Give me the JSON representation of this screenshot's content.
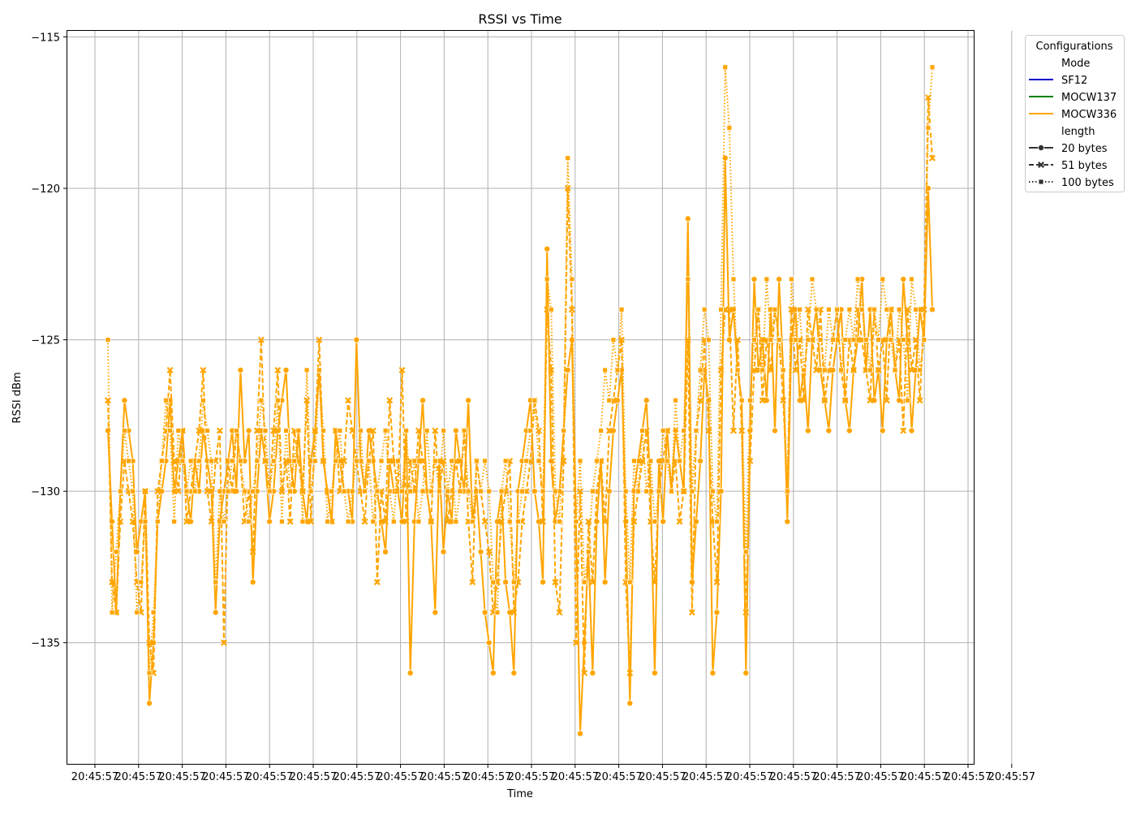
{
  "colors": {
    "SF12": "#0000cc",
    "MOCW137": "#008000",
    "MOCW336": "#ffa500",
    "grid": "#b0b0b0",
    "axis": "#000000"
  },
  "legend": {
    "title": "Configurations",
    "hue_title": "Mode",
    "modes": [
      "SF12",
      "MOCW137",
      "MOCW336"
    ],
    "style_title": "length",
    "lengths": [
      "20 bytes",
      "51 bytes",
      "100 bytes"
    ],
    "placement": "outside-right-top"
  },
  "chart_data": {
    "type": "line",
    "title": "RSSI vs Time",
    "xlabel": "Time",
    "ylabel": "RSSI dBm",
    "ylim": [
      -139,
      -114.8
    ],
    "yticks": [
      -115,
      -120,
      -125,
      -130,
      -135
    ],
    "xtick_labels": [
      "20:45:57",
      "20:45:57",
      "20:45:57",
      "20:45:57",
      "20:45:57",
      "20:45:57",
      "20:45:57",
      "20:45:57",
      "20:45:57",
      "20:45:57",
      "20:45:57",
      "20:45:57",
      "20:45:57",
      "20:45:57",
      "20:45:57",
      "20:45:57",
      "20:45:57",
      "20:45:57",
      "20:45:57",
      "20:45:57",
      "20:45:57",
      "20:45:57"
    ],
    "grid": true,
    "x_note": "x is sample index (0-199); all tick labels print the same time",
    "series": [
      {
        "name": "MOCW336",
        "length": "20 bytes",
        "marker": "circle",
        "dash": "solid",
        "values": [
          -128,
          -131,
          -134,
          -130,
          -127,
          -128,
          -129,
          -132,
          -131,
          -130,
          -137,
          -135,
          -131,
          -130,
          -129,
          -127,
          -130,
          -129,
          -128,
          -130,
          -131,
          -129,
          -130,
          -128,
          -129,
          -130,
          -134,
          -131,
          -130,
          -129,
          -128,
          -130,
          -126,
          -129,
          -128,
          -133,
          -130,
          -128,
          -129,
          -131,
          -130,
          -128,
          -127,
          -126,
          -129,
          -130,
          -128,
          -130,
          -131,
          -129,
          -128,
          -126,
          -129,
          -130,
          -131,
          -128,
          -129,
          -130,
          -130,
          -131,
          -125,
          -129,
          -130,
          -128,
          -129,
          -130,
          -131,
          -132,
          -129,
          -130,
          -130,
          -131,
          -128,
          -136,
          -131,
          -129,
          -127,
          -130,
          -131,
          -134,
          -129,
          -132,
          -130,
          -131,
          -128,
          -129,
          -130,
          -127,
          -131,
          -130,
          -132,
          -134,
          -135,
          -136,
          -131,
          -130,
          -133,
          -134,
          -136,
          -130,
          -129,
          -128,
          -127,
          -130,
          -131,
          -133,
          -122,
          -129,
          -131,
          -130,
          -128,
          -126,
          -125,
          -131,
          -138,
          -135,
          -132,
          -136,
          -131,
          -129,
          -133,
          -130,
          -128,
          -127,
          -126,
          -131,
          -137,
          -130,
          -129,
          -128,
          -127,
          -130,
          -136,
          -129,
          -131,
          -128,
          -130,
          -128,
          -129,
          -130,
          -121,
          -133,
          -131,
          -129,
          -126,
          -127,
          -136,
          -134,
          -130,
          -119,
          -125,
          -124,
          -126,
          -127,
          -136,
          -128,
          -123,
          -126,
          -125,
          -127,
          -124,
          -128,
          -123,
          -126,
          -131,
          -125,
          -124,
          -127,
          -126,
          -128,
          -125,
          -124,
          -126,
          -127,
          -128,
          -126,
          -125,
          -124,
          -127,
          -128,
          -126,
          -125,
          -123,
          -126,
          -124,
          -127,
          -126,
          -128,
          -125,
          -124,
          -126,
          -127,
          -123,
          -125,
          -128,
          -126,
          -124,
          -125,
          -120,
          -124
        ]
      },
      {
        "name": "MOCW336",
        "length": "51 bytes",
        "marker": "x",
        "dash": "dashed",
        "values": [
          -127,
          -133,
          -134,
          -131,
          -129,
          -130,
          -131,
          -133,
          -134,
          -130,
          -135,
          -136,
          -130,
          -129,
          -128,
          -126,
          -129,
          -130,
          -128,
          -131,
          -130,
          -129,
          -128,
          -126,
          -130,
          -131,
          -129,
          -128,
          -135,
          -129,
          -130,
          -128,
          -129,
          -131,
          -130,
          -132,
          -128,
          -125,
          -129,
          -130,
          -128,
          -126,
          -130,
          -129,
          -131,
          -128,
          -129,
          -130,
          -127,
          -131,
          -128,
          -125,
          -129,
          -130,
          -131,
          -128,
          -130,
          -129,
          -127,
          -128,
          -129,
          -130,
          -131,
          -129,
          -128,
          -133,
          -130,
          -131,
          -127,
          -129,
          -130,
          -126,
          -131,
          -129,
          -130,
          -128,
          -129,
          -130,
          -131,
          -128,
          -130,
          -129,
          -131,
          -130,
          -129,
          -130,
          -128,
          -131,
          -133,
          -129,
          -130,
          -131,
          -132,
          -134,
          -133,
          -131,
          -130,
          -129,
          -134,
          -133,
          -131,
          -130,
          -129,
          -127,
          -128,
          -131,
          -124,
          -126,
          -133,
          -134,
          -129,
          -120,
          -124,
          -135,
          -130,
          -136,
          -131,
          -133,
          -130,
          -129,
          -131,
          -128,
          -127,
          -126,
          -125,
          -133,
          -136,
          -131,
          -130,
          -129,
          -128,
          -131,
          -133,
          -130,
          -129,
          -128,
          -130,
          -129,
          -131,
          -130,
          -125,
          -134,
          -128,
          -127,
          -125,
          -128,
          -131,
          -133,
          -126,
          -124,
          -124,
          -128,
          -125,
          -128,
          -134,
          -129,
          -126,
          -124,
          -127,
          -125,
          -126,
          -124,
          -125,
          -127,
          -130,
          -124,
          -126,
          -125,
          -127,
          -124,
          -125,
          -126,
          -124,
          -127,
          -126,
          -125,
          -124,
          -126,
          -127,
          -125,
          -126,
          -124,
          -125,
          -126,
          -127,
          -124,
          -126,
          -125,
          -127,
          -124,
          -126,
          -125,
          -128,
          -124,
          -126,
          -125,
          -127,
          -124,
          -117,
          -119
        ]
      },
      {
        "name": "MOCW336",
        "length": "100 bytes",
        "marker": "square",
        "dash": "dotted",
        "values": [
          -125,
          -134,
          -132,
          -130,
          -128,
          -129,
          -130,
          -134,
          -133,
          -131,
          -136,
          -134,
          -131,
          -129,
          -127,
          -128,
          -131,
          -128,
          -129,
          -130,
          -129,
          -130,
          -129,
          -127,
          -128,
          -129,
          -133,
          -130,
          -131,
          -130,
          -129,
          -128,
          -129,
          -130,
          -131,
          -130,
          -129,
          -127,
          -128,
          -130,
          -129,
          -127,
          -131,
          -128,
          -130,
          -129,
          -128,
          -131,
          -126,
          -130,
          -129,
          -126,
          -128,
          -131,
          -130,
          -129,
          -128,
          -130,
          -131,
          -130,
          -129,
          -128,
          -130,
          -129,
          -131,
          -130,
          -129,
          -128,
          -130,
          -131,
          -129,
          -130,
          -128,
          -130,
          -129,
          -131,
          -130,
          -128,
          -130,
          -129,
          -130,
          -128,
          -130,
          -129,
          -131,
          -130,
          -128,
          -130,
          -131,
          -129,
          -130,
          -129,
          -130,
          -133,
          -134,
          -130,
          -129,
          -131,
          -133,
          -131,
          -130,
          -129,
          -128,
          -127,
          -129,
          -130,
          -123,
          -124,
          -130,
          -131,
          -128,
          -119,
          -123,
          -131,
          -129,
          -133,
          -132,
          -130,
          -129,
          -128,
          -126,
          -127,
          -125,
          -126,
          -124,
          -130,
          -133,
          -129,
          -130,
          -128,
          -130,
          -129,
          -131,
          -130,
          -128,
          -129,
          -130,
          -127,
          -129,
          -128,
          -123,
          -130,
          -128,
          -126,
          -124,
          -125,
          -130,
          -131,
          -124,
          -116,
          -118,
          -123,
          -126,
          -127,
          -132,
          -127,
          -125,
          -124,
          -126,
          -123,
          -125,
          -124,
          -125,
          -126,
          -130,
          -123,
          -125,
          -124,
          -126,
          -125,
          -123,
          -124,
          -125,
          -126,
          -124,
          -125,
          -124,
          -126,
          -125,
          -124,
          -125,
          -123,
          -124,
          -125,
          -126,
          -124,
          -125,
          -123,
          -124,
          -125,
          -126,
          -124,
          -125,
          -127,
          -123,
          -124,
          -126,
          -125,
          -118,
          -116
        ]
      }
    ]
  }
}
